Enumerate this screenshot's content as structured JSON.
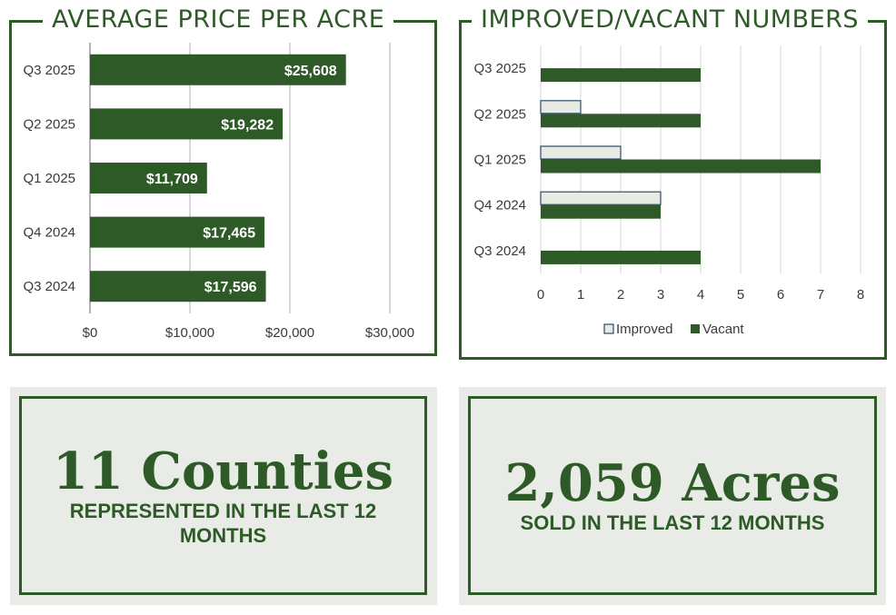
{
  "price_panel": {
    "title": "AVERAGE PRICE PER ACRE"
  },
  "counts_panel": {
    "title": "IMPROVED/VACANT NUMBERS"
  },
  "chart_data": [
    {
      "type": "bar",
      "orientation": "horizontal",
      "title": "AVERAGE PRICE PER ACRE",
      "categories": [
        "Q3 2025",
        "Q2 2025",
        "Q1 2025",
        "Q4 2024",
        "Q3 2024"
      ],
      "values": [
        25608,
        19282,
        11709,
        17465,
        17596
      ],
      "data_labels": [
        "$25,608",
        "$19,282",
        "$11,709",
        "$17,465",
        "$17,596"
      ],
      "xlim": [
        0,
        30000
      ],
      "x_ticks": [
        "$0",
        "$10,000",
        "$20,000",
        "$30,000"
      ],
      "grid": true,
      "bar_color": "#2d5a27"
    },
    {
      "type": "bar",
      "orientation": "horizontal",
      "title": "IMPROVED/VACANT NUMBERS",
      "categories": [
        "Q3 2025",
        "Q2 2025",
        "Q1 2025",
        "Q4 2024",
        "Q3 2024"
      ],
      "series": [
        {
          "name": "Improved",
          "values": [
            0,
            1,
            2,
            3,
            0
          ],
          "color": "#e8ebe4",
          "stroke": "#2e4a6b"
        },
        {
          "name": "Vacant",
          "values": [
            4,
            4,
            7,
            3,
            4
          ],
          "color": "#2d5a27"
        }
      ],
      "xlim": [
        0,
        8
      ],
      "x_ticks": [
        "0",
        "1",
        "2",
        "3",
        "4",
        "5",
        "6",
        "7",
        "8"
      ],
      "grid": true,
      "legend": "bottom"
    }
  ],
  "stats": [
    {
      "big": "11 Counties",
      "sub": "REPRESENTED IN THE LAST 12 MONTHS"
    },
    {
      "big": "2,059 Acres",
      "sub": "SOLD IN THE LAST 12 MONTHS"
    }
  ]
}
